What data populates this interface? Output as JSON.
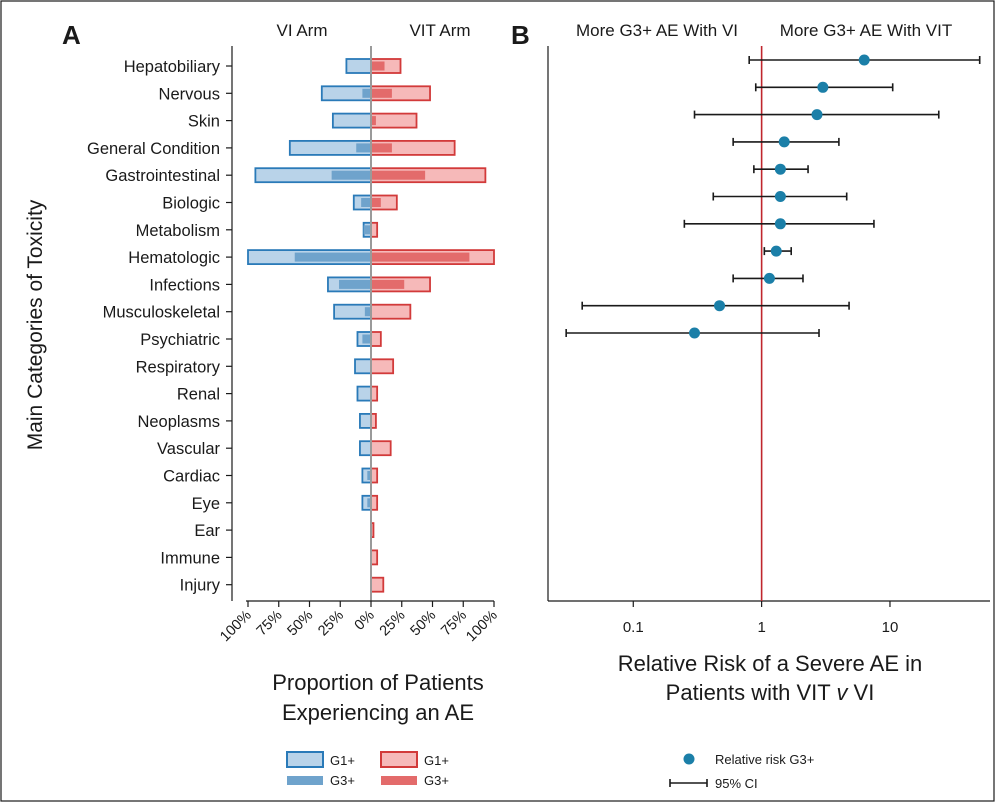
{
  "figure": {
    "y_axis_label": "Main Categories of Toxicity"
  },
  "panel_a": {
    "letter": "A",
    "left_header": "VI Arm",
    "right_header": "VIT Arm",
    "xlabel_line1": "Proportion of Patients",
    "xlabel_line2": "Experiencing an AE",
    "legend": {
      "vi_g1": "G1+",
      "vi_g3": "G3+",
      "vit_g1": "G1+",
      "vit_g3": "G3+"
    }
  },
  "panel_b": {
    "letter": "B",
    "left_header": "More G3+ AE With VI",
    "right_header": "More G3+ AE With VIT",
    "xlabel_line1": "Relative Risk of a Severe AE in",
    "xlabel_line2_pre": "Patients with VIT ",
    "xlabel_line2_italic": "v",
    "xlabel_line2_post": " VI",
    "legend": {
      "point": "Relative risk G3+",
      "ci": "95% CI"
    }
  },
  "colors": {
    "vi_fill": "#b9d3e9",
    "vi_dark": "#6fa3cc",
    "vi_stroke": "#2a7ab8",
    "vit_fill": "#f6b9b9",
    "vit_dark": "#e36b6b",
    "vit_stroke": "#d23a3a",
    "point": "#1b7fa8",
    "refline": "#c0262d"
  },
  "chart_data": [
    {
      "type": "bar",
      "orientation": "horizontal-diverging",
      "title": "",
      "ylabel": "Main Categories of Toxicity",
      "xlabel": "Proportion of Patients Experiencing an AE",
      "xlim": [
        -100,
        100
      ],
      "x_tick_labels": [
        "100%",
        "75%",
        "50%",
        "25%",
        "0%",
        "25%",
        "50%",
        "75%",
        "100%"
      ],
      "x_tick_values": [
        -100,
        -75,
        -50,
        -25,
        0,
        25,
        50,
        75,
        100
      ],
      "categories": [
        "Hepatobiliary",
        "Nervous",
        "Skin",
        "General Condition",
        "Gastrointestinal",
        "Biologic",
        "Metabolism",
        "Hematologic",
        "Infections",
        "Musculoskeletal",
        "Psychiatric",
        "Respiratory",
        "Renal",
        "Neoplasms",
        "Vascular",
        "Cardiac",
        "Eye",
        "Ear",
        "Immune",
        "Injury"
      ],
      "series": [
        {
          "name": "G1+",
          "arm": "VI Arm",
          "values": [
            20,
            40,
            31,
            66,
            94,
            14,
            6,
            100,
            35,
            30,
            11,
            13,
            11,
            9,
            9,
            7,
            7,
            0,
            0,
            0
          ]
        },
        {
          "name": "G3+",
          "arm": "VI Arm",
          "values": [
            0,
            7,
            0,
            12,
            32,
            8,
            6,
            62,
            26,
            5,
            7,
            0,
            0,
            0,
            0,
            3,
            3,
            0,
            0,
            0
          ]
        },
        {
          "name": "G1+",
          "arm": "VIT Arm",
          "values": [
            24,
            48,
            37,
            68,
            93,
            21,
            5,
            100,
            48,
            32,
            8,
            18,
            5,
            4,
            16,
            5,
            5,
            2,
            5,
            10
          ]
        },
        {
          "name": "G3+",
          "arm": "VIT Arm",
          "values": [
            11,
            17,
            4,
            17,
            44,
            8,
            0,
            80,
            27,
            0,
            0,
            0,
            0,
            0,
            0,
            0,
            0,
            0,
            0,
            0
          ]
        }
      ],
      "legend_position": "bottom"
    },
    {
      "type": "scatter",
      "subtype": "forest",
      "title": "",
      "xlabel": "Relative Risk of a Severe AE in Patients with VIT v VI",
      "x_scale": "log",
      "xlim": [
        0.025,
        55
      ],
      "x_tick_labels": [
        "0.1",
        "1",
        "10"
      ],
      "x_tick_values": [
        0.1,
        1,
        10
      ],
      "reference_line": 1,
      "categories": [
        "Hepatobiliary",
        "Nervous",
        "Skin",
        "General Condition",
        "Gastrointestinal",
        "Biologic",
        "Metabolism",
        "Hematologic",
        "Infections",
        "Musculoskeletal",
        "Psychiatric"
      ],
      "series": [
        {
          "name": "Relative risk G3+",
          "values": [
            6.3,
            3.0,
            2.7,
            1.5,
            1.4,
            1.4,
            1.4,
            1.3,
            1.15,
            0.47,
            0.3
          ],
          "ci_low": [
            0.8,
            0.9,
            0.3,
            0.6,
            0.87,
            0.42,
            0.25,
            1.05,
            0.6,
            0.04,
            0.03
          ],
          "ci_high": [
            50,
            10.5,
            24,
            4.0,
            2.3,
            4.6,
            7.5,
            1.7,
            2.1,
            4.8,
            2.8
          ]
        }
      ],
      "legend_position": "bottom"
    }
  ]
}
